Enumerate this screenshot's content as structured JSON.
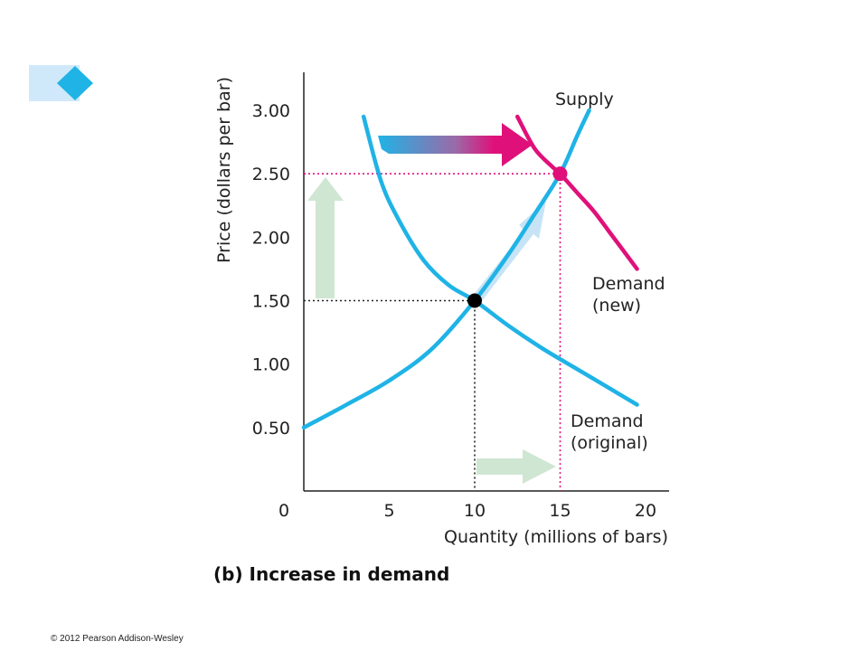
{
  "copyright": "© 2012 Pearson Addison-Wesley",
  "chart_data": {
    "type": "line",
    "caption": "(b) Increase in demand",
    "xlabel": "Quantity (millions of bars)",
    "ylabel": "Price (dollars per bar)",
    "origin_label": "0",
    "xlim": [
      0,
      21
    ],
    "ylim": [
      0,
      3.3
    ],
    "x_ticks": [
      {
        "value": 5,
        "label": "5"
      },
      {
        "value": 10,
        "label": "10"
      },
      {
        "value": 15,
        "label": "15",
        "highlight": true
      },
      {
        "value": 20,
        "label": "20"
      }
    ],
    "y_ticks": [
      {
        "value": 0.5,
        "label": "0.50"
      },
      {
        "value": 1.0,
        "label": "1.00"
      },
      {
        "value": 1.5,
        "label": "1.50"
      },
      {
        "value": 2.0,
        "label": "2.00"
      },
      {
        "value": 2.5,
        "label": "2.50",
        "highlight": true
      },
      {
        "value": 3.0,
        "label": "3.00"
      }
    ],
    "series": [
      {
        "name": "Supply",
        "label_lines": [
          "Supply"
        ],
        "color": "#1fb3e6",
        "x": [
          0,
          2.5,
          5,
          7.5,
          10,
          12,
          13.5,
          15,
          16,
          16.7
        ],
        "y": [
          0.5,
          0.68,
          0.87,
          1.12,
          1.5,
          1.87,
          2.18,
          2.5,
          2.8,
          3.0
        ]
      },
      {
        "name": "Demand (original)",
        "label_lines": [
          "Demand",
          "(original)"
        ],
        "color": "#1fb3e6",
        "x": [
          3.5,
          4.5,
          5.5,
          7,
          8.5,
          10,
          12,
          14,
          16,
          18,
          19.5
        ],
        "y": [
          2.95,
          2.45,
          2.15,
          1.82,
          1.62,
          1.5,
          1.3,
          1.12,
          0.96,
          0.8,
          0.68
        ]
      },
      {
        "name": "Demand (new)",
        "label_lines": [
          "Demand",
          "(new)"
        ],
        "color": "#e0107a",
        "x": [
          12.5,
          13.5,
          14.5,
          15,
          16,
          17,
          18,
          19.5
        ],
        "y": [
          2.95,
          2.7,
          2.56,
          2.5,
          2.35,
          2.2,
          2.02,
          1.75
        ]
      }
    ],
    "equilibria": [
      {
        "x": 10,
        "y": 1.5,
        "color": "#000000"
      },
      {
        "x": 15,
        "y": 2.5,
        "color": "#e0107a"
      }
    ],
    "colors": {
      "supply": "#1fb3e6",
      "demand_original": "#1fb3e6",
      "demand_new": "#e0107a",
      "highlight": "#e0107a",
      "arrow_green": "#cfe6d2",
      "arrow_blue": "#c6e4f6",
      "axis": "#222222"
    },
    "grid": false
  }
}
